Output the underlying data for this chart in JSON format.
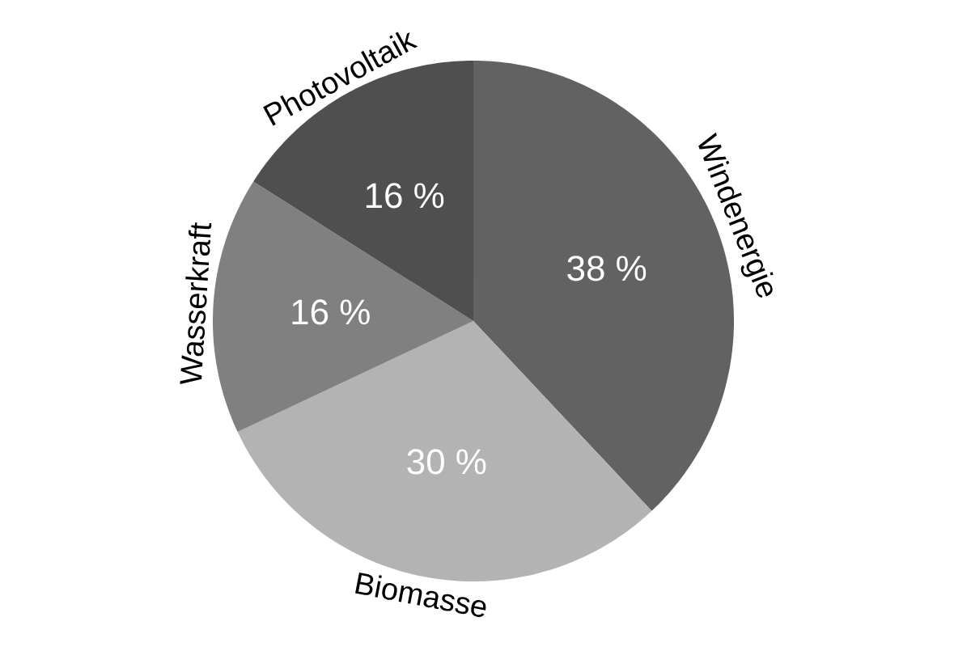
{
  "chart_data": {
    "type": "pie",
    "categories": [
      "Windenergie",
      "Biomasse",
      "Wasserkraft",
      "Photovoltaik"
    ],
    "values": [
      38,
      30,
      16,
      16
    ],
    "colors": [
      "#626262",
      "#b3b3b3",
      "#808080",
      "#4f4f4f"
    ],
    "value_labels": [
      "38 %",
      "30 %",
      "16 %",
      "16 %"
    ]
  }
}
